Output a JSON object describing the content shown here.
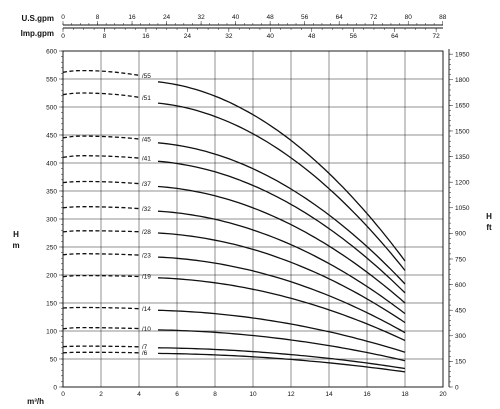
{
  "chart_data": {
    "type": "line",
    "x_axis": {
      "label": "m³/h",
      "ticks": [
        0,
        2,
        4,
        6,
        8,
        10,
        12,
        14,
        16,
        18,
        20
      ],
      "range": [
        0,
        20
      ]
    },
    "y_axis_left": {
      "label_top": "H",
      "label_bottom": "m",
      "ticks": [
        0,
        50,
        100,
        150,
        200,
        250,
        300,
        350,
        400,
        450,
        500,
        550,
        600
      ],
      "range": [
        0,
        600
      ]
    },
    "y_axis_right": {
      "label_top": "H",
      "label_bottom": "ft",
      "ticks": [
        0,
        150,
        300,
        450,
        600,
        750,
        900,
        1050,
        1200,
        1350,
        1500,
        1650,
        1800,
        1950
      ]
    },
    "top_axis_1": {
      "label": "U.S.gpm",
      "ticks": [
        0,
        8,
        16,
        24,
        32,
        40,
        48,
        56,
        64,
        72,
        80,
        88
      ]
    },
    "top_axis_2": {
      "label": "Imp.gpm",
      "ticks": [
        0,
        8,
        16,
        24,
        32,
        40,
        48,
        56,
        64,
        72
      ]
    },
    "grid": true,
    "dashed_range": [
      0,
      4
    ],
    "solid_range": [
      5,
      18
    ],
    "series": [
      {
        "name": "/55",
        "h0": 562,
        "hmax": 565,
        "h5": 545,
        "h18": 225
      },
      {
        "name": "/51",
        "h0": 522,
        "hmax": 525,
        "h5": 507,
        "h18": 208
      },
      {
        "name": "/45",
        "h0": 445,
        "hmax": 448,
        "h5": 436,
        "h18": 184
      },
      {
        "name": "/41",
        "h0": 410,
        "hmax": 413,
        "h5": 403,
        "h18": 168
      },
      {
        "name": "/37",
        "h0": 365,
        "hmax": 367,
        "h5": 358,
        "h18": 150
      },
      {
        "name": "/32",
        "h0": 320,
        "hmax": 322,
        "h5": 314,
        "h18": 131
      },
      {
        "name": "/28",
        "h0": 277,
        "hmax": 279,
        "h5": 275,
        "h18": 115
      },
      {
        "name": "/23",
        "h0": 236,
        "hmax": 238,
        "h5": 232,
        "h18": 97
      },
      {
        "name": "/19",
        "h0": 197,
        "hmax": 199,
        "h5": 195,
        "h18": 83
      },
      {
        "name": "/14",
        "h0": 141,
        "hmax": 142,
        "h5": 137,
        "h18": 62
      },
      {
        "name": "/10",
        "h0": 104,
        "hmax": 106,
        "h5": 102,
        "h18": 47
      },
      {
        "name": "/7",
        "h0": 72,
        "hmax": 73,
        "h5": 70,
        "h18": 33
      },
      {
        "name": "/6",
        "h0": 61,
        "hmax": 62,
        "h5": 60,
        "h18": 27
      }
    ]
  }
}
